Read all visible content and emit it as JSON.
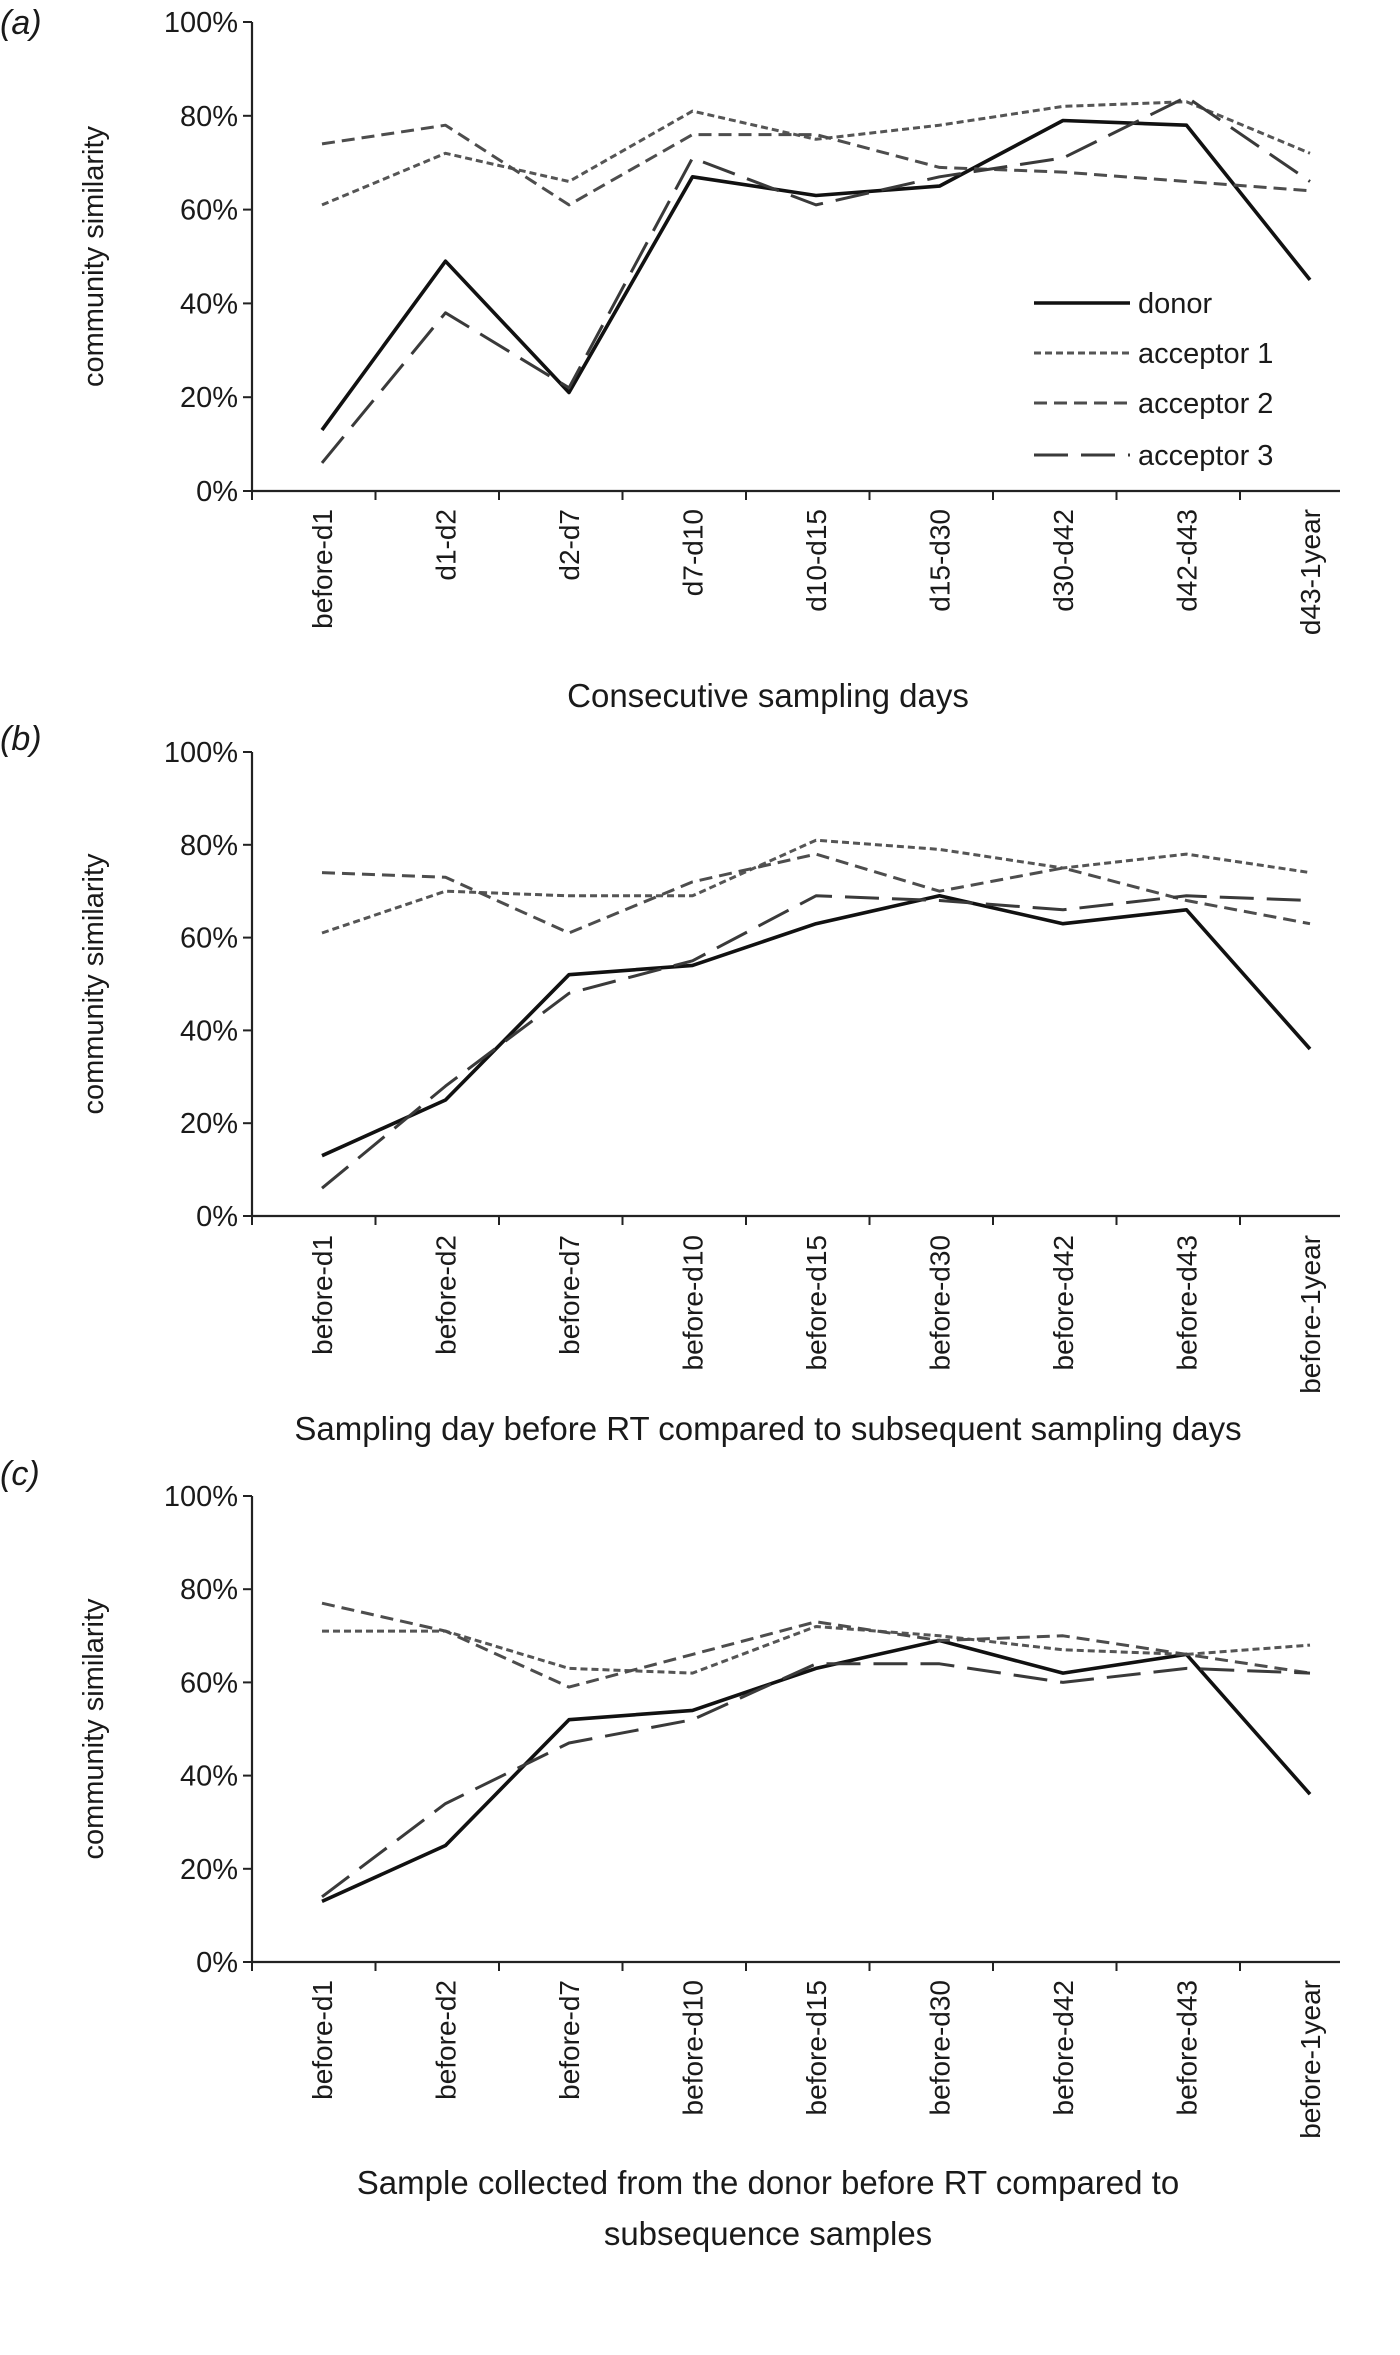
{
  "figure": {
    "legend": [
      "donor",
      "acceptor 1",
      "acceptor 2",
      "acceptor 3"
    ],
    "y_ticks": [
      "0%",
      "20%",
      "40%",
      "60%",
      "80%",
      "100%"
    ]
  },
  "chart_data": [
    {
      "type": "line",
      "panel_label": "(a)",
      "title": "",
      "xlabel": [
        "Consecutive sampling days"
      ],
      "ylabel": "community similarity",
      "ylim": [
        0,
        100
      ],
      "y_ticks": [
        0,
        20,
        40,
        60,
        80,
        100
      ],
      "categories": [
        "before-d1",
        "d1-d2",
        "d2-d7",
        "d7-d10",
        "d10-d15",
        "d15-d30",
        "d30-d42",
        "d42-d43",
        "d43-1year"
      ],
      "legend": "inside right",
      "series": [
        {
          "name": "donor",
          "style": "solid",
          "values": [
            13,
            49,
            21,
            67,
            63,
            65,
            79,
            78,
            45
          ]
        },
        {
          "name": "acceptor 1",
          "style": "dotted",
          "values": [
            61,
            72,
            66,
            81,
            75,
            78,
            82,
            83,
            72
          ]
        },
        {
          "name": "acceptor 2",
          "style": "short-dash",
          "values": [
            74,
            78,
            61,
            76,
            76,
            69,
            68,
            66,
            64
          ]
        },
        {
          "name": "acceptor 3",
          "style": "long-dash",
          "values": [
            6,
            38,
            22,
            71,
            61,
            67,
            71,
            84,
            66
          ]
        }
      ]
    },
    {
      "type": "line",
      "panel_label": "(b)",
      "title": "",
      "xlabel": [
        "Sampling day before RT compared to subsequent sampling days"
      ],
      "ylabel": "community similarity",
      "ylim": [
        0,
        100
      ],
      "y_ticks": [
        0,
        20,
        40,
        60,
        80,
        100
      ],
      "categories": [
        "before-d1",
        "before-d2",
        "before-d7",
        "before-d10",
        "before-d15",
        "before-d30",
        "before-d42",
        "before-d43",
        "before-1year"
      ],
      "series": [
        {
          "name": "donor",
          "style": "solid",
          "values": [
            13,
            25,
            52,
            54,
            63,
            69,
            63,
            66,
            36
          ]
        },
        {
          "name": "acceptor 1",
          "style": "dotted",
          "values": [
            61,
            70,
            69,
            69,
            81,
            79,
            75,
            78,
            74
          ]
        },
        {
          "name": "acceptor 2",
          "style": "short-dash",
          "values": [
            74,
            73,
            61,
            72,
            78,
            70,
            75,
            68,
            63
          ]
        },
        {
          "name": "acceptor 3",
          "style": "long-dash",
          "values": [
            6,
            28,
            48,
            55,
            69,
            68,
            66,
            69,
            68
          ]
        }
      ]
    },
    {
      "type": "line",
      "panel_label": "(c)",
      "title": "",
      "xlabel": [
        "Sample collected from the donor before RT compared to",
        "subsequence samples"
      ],
      "ylabel": "community similarity",
      "ylim": [
        0,
        100
      ],
      "y_ticks": [
        0,
        20,
        40,
        60,
        80,
        100
      ],
      "categories": [
        "before-d1",
        "before-d2",
        "before-d7",
        "before-d10",
        "before-d15",
        "before-d30",
        "before-d42",
        "before-d43",
        "before-1year"
      ],
      "series": [
        {
          "name": "donor",
          "style": "solid",
          "values": [
            13,
            25,
            52,
            54,
            63,
            69,
            62,
            66,
            36
          ]
        },
        {
          "name": "acceptor 1",
          "style": "dotted",
          "values": [
            71,
            71,
            63,
            62,
            72,
            70,
            67,
            66,
            68
          ]
        },
        {
          "name": "acceptor 2",
          "style": "short-dash",
          "values": [
            77,
            71,
            59,
            66,
            73,
            69,
            70,
            66,
            62
          ]
        },
        {
          "name": "acceptor 3",
          "style": "long-dash",
          "values": [
            14,
            34,
            47,
            52,
            64,
            64,
            60,
            63,
            62
          ]
        }
      ]
    }
  ]
}
